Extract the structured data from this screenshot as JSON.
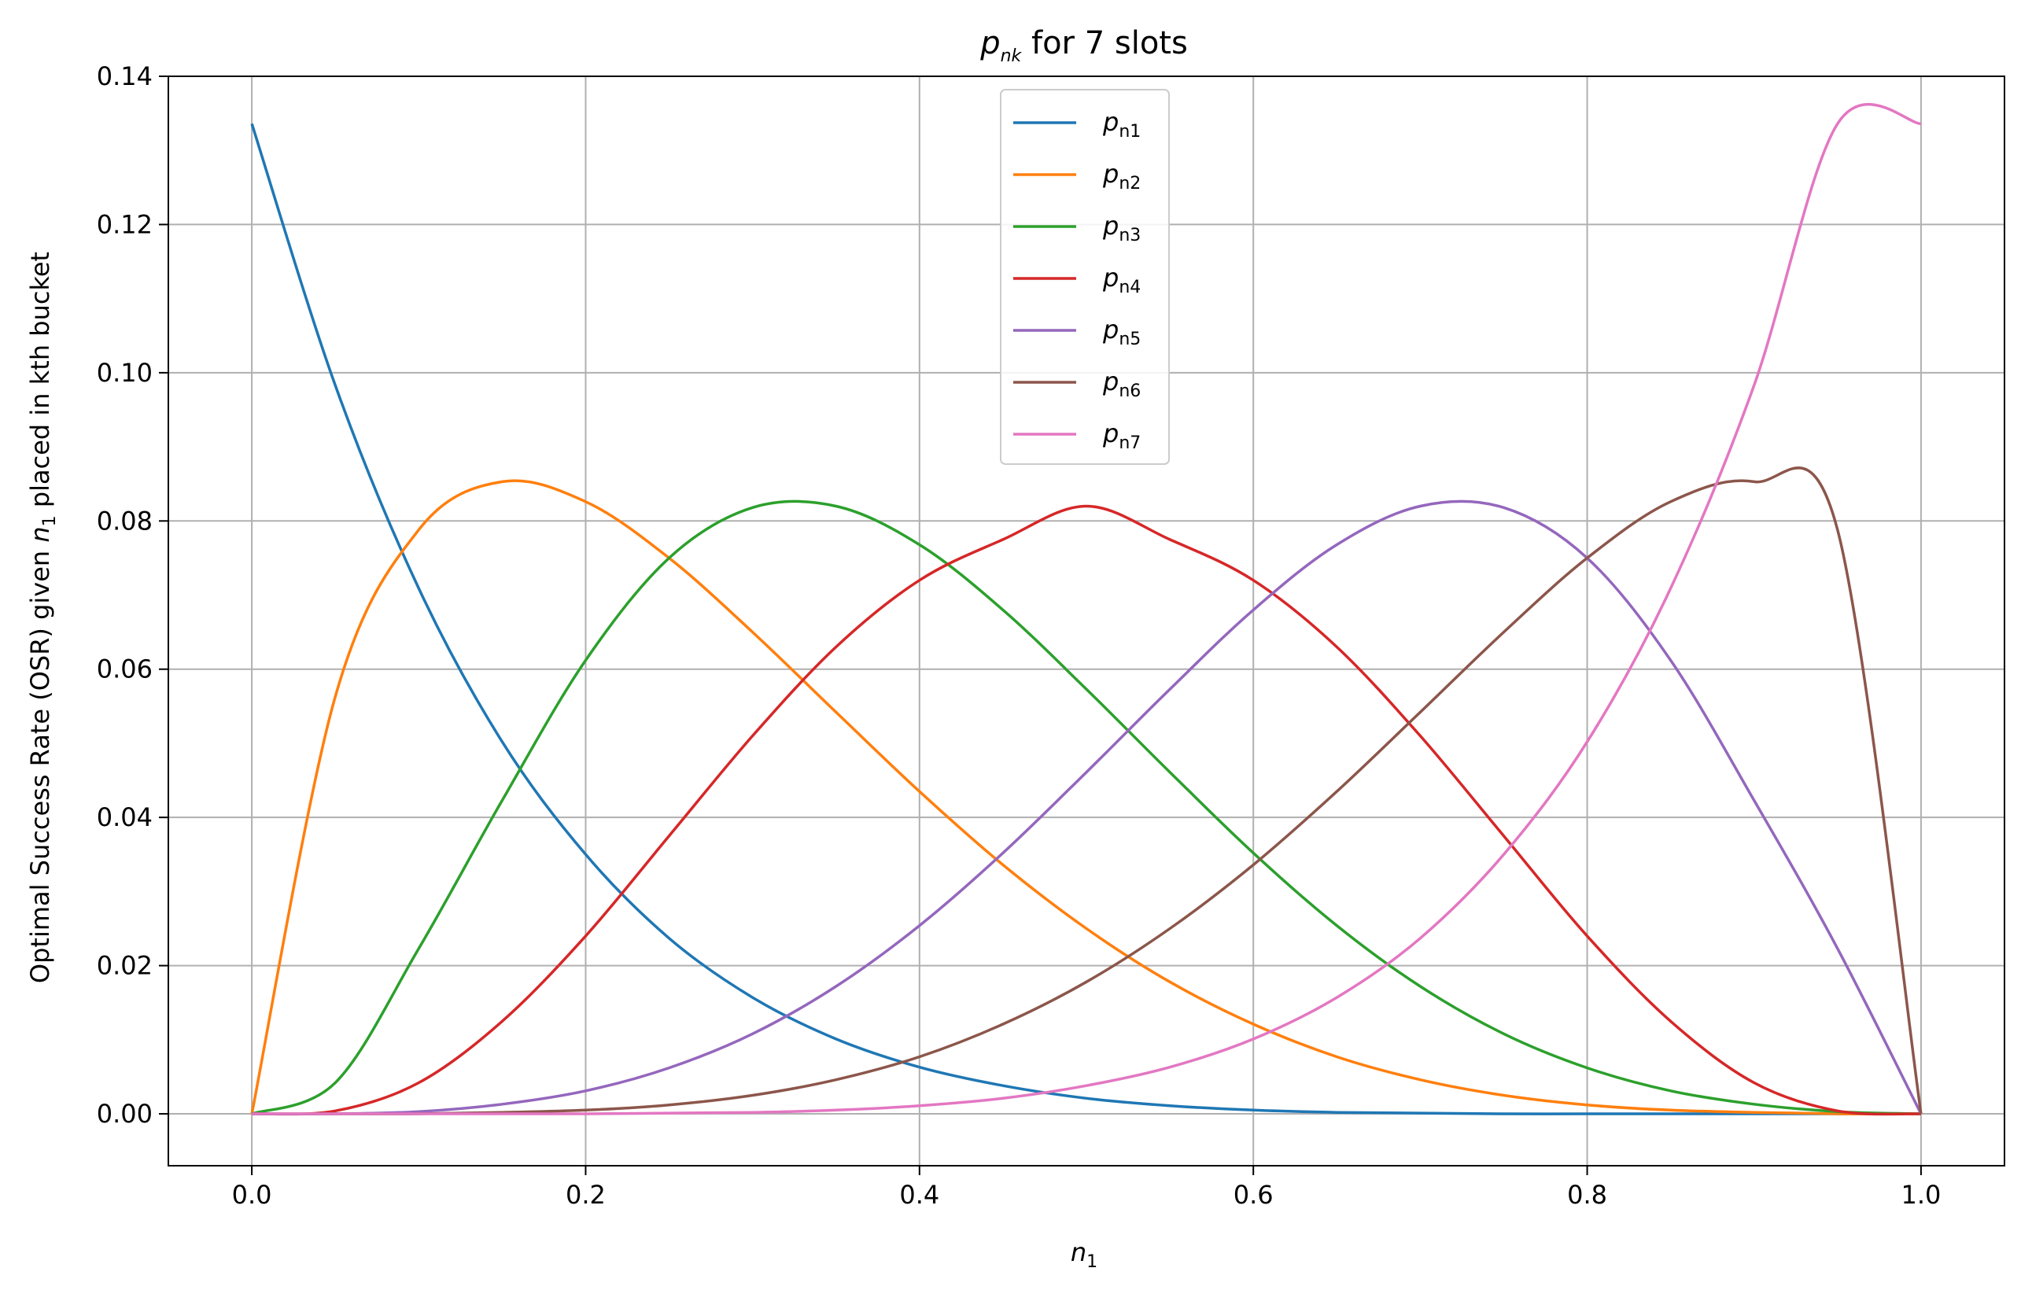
{
  "chart_data": {
    "type": "line",
    "title": {
      "main": "p",
      "sub": "nk",
      "rest": " for 7 slots"
    },
    "xlabel": {
      "main": "n",
      "sub": "1"
    },
    "ylabel": {
      "before": "Optimal Success Rate (OSR) given ",
      "var": "n",
      "sub": "1",
      "after": " placed in kth bucket"
    },
    "xlim": [
      -0.05,
      1.05
    ],
    "ylim": [
      -0.007,
      0.14
    ],
    "xticks": [
      0.0,
      0.2,
      0.4,
      0.6,
      0.8,
      1.0
    ],
    "xtick_labels": [
      "0.0",
      "0.2",
      "0.4",
      "0.6",
      "0.8",
      "1.0"
    ],
    "yticks": [
      0.0,
      0.02,
      0.04,
      0.06,
      0.08,
      0.1,
      0.12,
      0.14
    ],
    "ytick_labels": [
      "0.00",
      "0.02",
      "0.04",
      "0.06",
      "0.08",
      "0.10",
      "0.12",
      "0.14"
    ],
    "grid": true,
    "legend_position": "top-center",
    "x": [
      0.0,
      0.05,
      0.1,
      0.15,
      0.2,
      0.25,
      0.3,
      0.35,
      0.4,
      0.45,
      0.5,
      0.55,
      0.6,
      0.65,
      0.7,
      0.75,
      0.8,
      0.85,
      0.9,
      0.95,
      1.0
    ],
    "series": [
      {
        "name": "p",
        "sub": "n1",
        "color": "#1f77b4",
        "values": [
          0.1336,
          0.0983,
          0.0709,
          0.0502,
          0.035,
          0.0237,
          0.0157,
          0.0101,
          0.0063,
          0.0038,
          0.0021,
          0.0011,
          0.0005,
          0.0002,
          0.0001,
          0.0,
          0.0,
          0.0,
          0.0,
          0.0,
          0.0
        ]
      },
      {
        "name": "p",
        "sub": "n2",
        "color": "#ff7f0e",
        "values": [
          0.0,
          0.0563,
          0.0788,
          0.0853,
          0.0826,
          0.075,
          0.065,
          0.0542,
          0.0435,
          0.0336,
          0.025,
          0.0178,
          0.0121,
          0.0077,
          0.0046,
          0.0025,
          0.0012,
          0.0005,
          0.0002,
          0.0,
          0.0
        ]
      },
      {
        "name": "p",
        "sub": "n3",
        "color": "#2ca02c",
        "values": [
          0.0,
          0.0042,
          0.0223,
          0.0423,
          0.0612,
          0.075,
          0.0818,
          0.082,
          0.0768,
          0.068,
          0.0573,
          0.0461,
          0.0352,
          0.0254,
          0.0172,
          0.0108,
          0.0062,
          0.0031,
          0.0013,
          0.0003,
          0.0
        ]
      },
      {
        "name": "p",
        "sub": "n4",
        "color": "#d62728",
        "values": [
          0.0,
          0.0004,
          0.0042,
          0.0125,
          0.024,
          0.0375,
          0.051,
          0.063,
          0.072,
          0.0775,
          0.082,
          0.0775,
          0.072,
          0.063,
          0.051,
          0.0375,
          0.024,
          0.0125,
          0.0042,
          0.0004,
          0.0
        ]
      },
      {
        "name": "p",
        "sub": "n5",
        "color": "#9467bd",
        "values": [
          0.0,
          0.0,
          0.0003,
          0.0013,
          0.0031,
          0.0062,
          0.0108,
          0.0172,
          0.0254,
          0.0352,
          0.0461,
          0.0573,
          0.068,
          0.0768,
          0.082,
          0.0818,
          0.075,
          0.0612,
          0.0423,
          0.0223,
          0.0
        ]
      },
      {
        "name": "p",
        "sub": "n6",
        "color": "#8c564b",
        "values": [
          0.0,
          0.0,
          0.0,
          0.0002,
          0.0005,
          0.0012,
          0.0025,
          0.0046,
          0.0077,
          0.0121,
          0.0178,
          0.025,
          0.0336,
          0.0435,
          0.0542,
          0.065,
          0.075,
          0.0826,
          0.0853,
          0.0788,
          0.0
        ]
      },
      {
        "name": "p",
        "sub": "n7",
        "color": "#e377c2",
        "values": [
          0.0,
          0.0,
          0.0,
          0.0,
          0.0,
          0.0001,
          0.0002,
          0.0005,
          0.0011,
          0.0021,
          0.0038,
          0.0063,
          0.0101,
          0.0157,
          0.0237,
          0.035,
          0.0502,
          0.0709,
          0.0983,
          0.1336,
          0.1336
        ]
      }
    ]
  }
}
